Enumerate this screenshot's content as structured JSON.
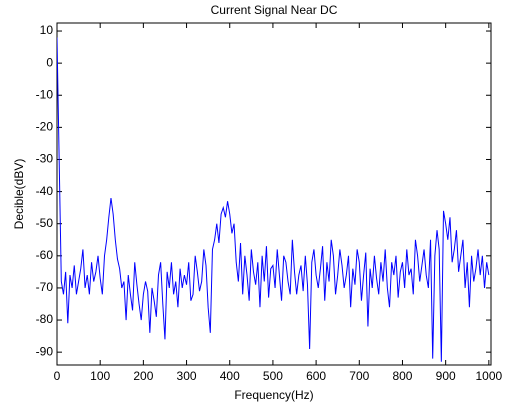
{
  "chart_data": {
    "type": "line",
    "title": "Current Signal Near DC",
    "xlabel": "Frequency(Hz)",
    "ylabel": "Decible(dBV)",
    "color": "#0000ff",
    "xlim": [
      0,
      1005
    ],
    "ylim": [
      -94,
      12.5
    ],
    "xticks": [
      0,
      100,
      200,
      300,
      400,
      500,
      600,
      700,
      800,
      900,
      1000
    ],
    "yticks": [
      10,
      0,
      -10,
      -20,
      -30,
      -40,
      -50,
      -60,
      -70,
      -80,
      -90
    ],
    "x": [
      0,
      5,
      10,
      15,
      20,
      25,
      30,
      35,
      40,
      45,
      50,
      55,
      60,
      65,
      70,
      75,
      80,
      85,
      90,
      95,
      100,
      105,
      110,
      115,
      120,
      125,
      130,
      135,
      140,
      145,
      150,
      155,
      160,
      165,
      170,
      175,
      180,
      185,
      190,
      195,
      200,
      205,
      210,
      215,
      220,
      225,
      230,
      235,
      240,
      245,
      250,
      255,
      260,
      265,
      270,
      275,
      280,
      285,
      290,
      295,
      300,
      305,
      310,
      315,
      320,
      325,
      330,
      335,
      340,
      345,
      350,
      355,
      360,
      365,
      370,
      375,
      380,
      385,
      390,
      395,
      400,
      405,
      410,
      415,
      420,
      425,
      430,
      435,
      440,
      445,
      450,
      455,
      460,
      465,
      470,
      475,
      480,
      485,
      490,
      495,
      500,
      505,
      510,
      515,
      520,
      525,
      530,
      535,
      540,
      545,
      550,
      555,
      560,
      565,
      570,
      575,
      580,
      585,
      590,
      595,
      600,
      605,
      610,
      615,
      620,
      625,
      630,
      635,
      640,
      645,
      650,
      655,
      660,
      665,
      670,
      675,
      680,
      685,
      690,
      695,
      700,
      705,
      710,
      715,
      720,
      725,
      730,
      735,
      740,
      745,
      750,
      755,
      760,
      765,
      770,
      775,
      780,
      785,
      790,
      795,
      800,
      805,
      810,
      815,
      820,
      825,
      830,
      835,
      840,
      845,
      850,
      855,
      860,
      865,
      870,
      875,
      880,
      885,
      890,
      895,
      900,
      905,
      910,
      915,
      920,
      925,
      930,
      935,
      940,
      945,
      950,
      955,
      960,
      965,
      970,
      975,
      980,
      985,
      990,
      995,
      1000
    ],
    "values": [
      8,
      -30,
      -68,
      -72,
      -65,
      -81,
      -66,
      -70,
      -63,
      -72,
      -68,
      -64,
      -58,
      -70,
      -66,
      -72,
      -62,
      -68,
      -65,
      -60,
      -67,
      -72,
      -60,
      -55,
      -48,
      -42,
      -47,
      -55,
      -61,
      -64,
      -70,
      -68,
      -80,
      -66,
      -72,
      -77,
      -62,
      -69,
      -75,
      -80,
      -72,
      -68,
      -71,
      -84,
      -70,
      -74,
      -79,
      -66,
      -62,
      -75,
      -86,
      -65,
      -70,
      -62,
      -72,
      -68,
      -76,
      -64,
      -70,
      -66,
      -69,
      -62,
      -74,
      -72,
      -60,
      -65,
      -71,
      -68,
      -58,
      -63,
      -76,
      -84,
      -58,
      -55,
      -50,
      -56,
      -47,
      -45,
      -48,
      -43,
      -47,
      -53,
      -50,
      -62,
      -68,
      -56,
      -72,
      -60,
      -66,
      -74,
      -58,
      -65,
      -69,
      -62,
      -76,
      -60,
      -68,
      -57,
      -73,
      -64,
      -63,
      -70,
      -58,
      -66,
      -74,
      -60,
      -62,
      -68,
      -72,
      -55,
      -65,
      -72,
      -66,
      -63,
      -71,
      -60,
      -69,
      -89,
      -62,
      -58,
      -66,
      -70,
      -64,
      -57,
      -74,
      -62,
      -68,
      -55,
      -60,
      -72,
      -66,
      -58,
      -63,
      -70,
      -66,
      -60,
      -76,
      -64,
      -69,
      -58,
      -62,
      -74,
      -66,
      -59,
      -82,
      -64,
      -70,
      -60,
      -67,
      -72,
      -62,
      -68,
      -58,
      -70,
      -76,
      -62,
      -66,
      -60,
      -73,
      -65,
      -62,
      -70,
      -58,
      -66,
      -64,
      -72,
      -55,
      -60,
      -68,
      -63,
      -58,
      -66,
      -70,
      -55,
      -92,
      -60,
      -52,
      -58,
      -93,
      -46,
      -50,
      -55,
      -48,
      -62,
      -58,
      -52,
      -65,
      -60,
      -55,
      -70,
      -62,
      -76,
      -60,
      -68,
      -64,
      -58,
      -66,
      -60,
      -70,
      -62,
      -66
    ]
  }
}
